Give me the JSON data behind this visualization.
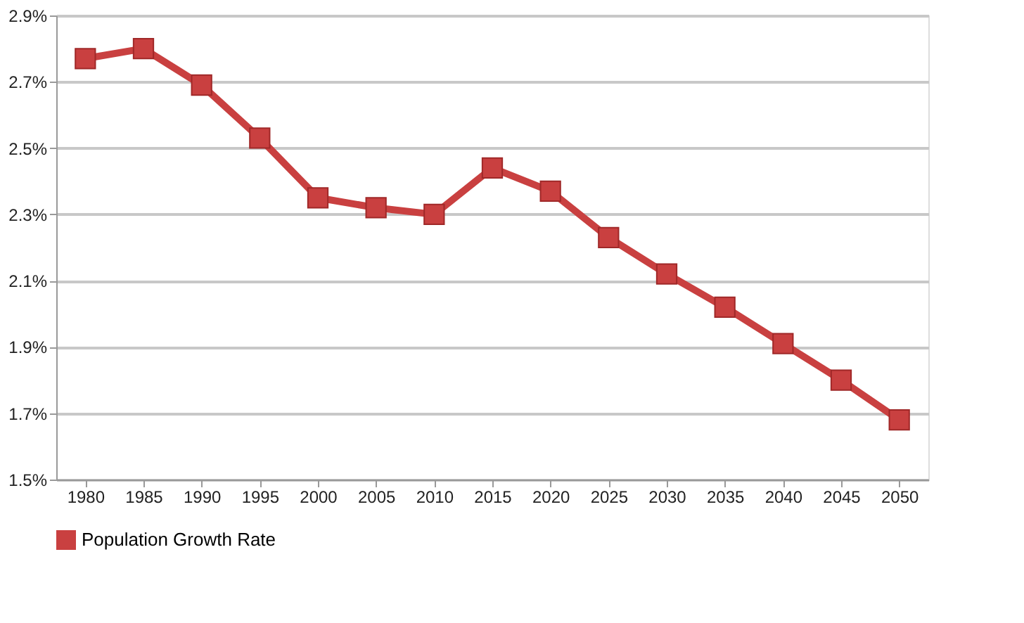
{
  "chart_data": {
    "type": "line",
    "categories": [
      "1980",
      "1985",
      "1990",
      "1995",
      "2000",
      "2005",
      "2010",
      "2015",
      "2020",
      "2025",
      "2030",
      "2035",
      "2040",
      "2045",
      "2050"
    ],
    "series": [
      {
        "name": "Population Growth Rate",
        "color": "#c94040",
        "values": [
          2.77,
          2.8,
          2.69,
          2.53,
          2.35,
          2.32,
          2.3,
          2.44,
          2.37,
          2.23,
          2.12,
          2.02,
          1.91,
          1.8,
          1.68
        ]
      }
    ],
    "ylim": [
      1.5,
      2.9
    ],
    "yticks": [
      {
        "value": 1.5,
        "label": "1.5%"
      },
      {
        "value": 1.7,
        "label": "1.7%"
      },
      {
        "value": 1.9,
        "label": "1.9%"
      },
      {
        "value": 2.1,
        "label": "2.1%"
      },
      {
        "value": 2.3,
        "label": "2.3%"
      },
      {
        "value": 2.5,
        "label": "2.5%"
      },
      {
        "value": 2.7,
        "label": "2.7%"
      },
      {
        "value": 2.9,
        "label": "2.9%"
      }
    ],
    "grid": "y",
    "legend": "bottom",
    "marker": "square",
    "line_style": "solid"
  }
}
